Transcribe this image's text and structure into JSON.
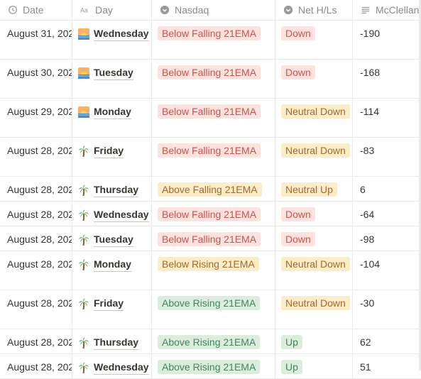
{
  "columns": {
    "date": "Date",
    "day": "Day",
    "nasdaq": "Nasdaq",
    "net": "Net H/Ls",
    "mcclellan": "McClellan"
  },
  "rows": [
    {
      "date": "August 31, 202",
      "emoji": "sunrise-icon",
      "day": "Wednesday",
      "nasdaq": "Below Falling 21EMA",
      "nasdaq_color": "red",
      "net": "Down",
      "net_color": "red",
      "mc": "-190",
      "height": 54
    },
    {
      "date": "August 30, 202",
      "emoji": "sunrise-icon",
      "day": "Tuesday",
      "nasdaq": "Below Falling 21EMA",
      "nasdaq_color": "red",
      "net": "Down",
      "net_color": "red",
      "mc": "-168",
      "height": 54
    },
    {
      "date": "August 29, 202",
      "emoji": "sunrise-icon",
      "day": "Monday",
      "nasdaq": "Below Falling 21EMA",
      "nasdaq_color": "red",
      "net": "Neutral Down",
      "net_color": "yellow",
      "mc": "-114",
      "height": 54
    },
    {
      "date": "August 28, 202",
      "emoji": "palm-tree-icon",
      "day": "Friday",
      "nasdaq": "Below Falling 21EMA",
      "nasdaq_color": "red",
      "net": "Neutral Down",
      "net_color": "yellow",
      "mc": "-83",
      "height": 54
    },
    {
      "date": "August 28, 202",
      "emoji": "palm-tree-icon",
      "day": "Thursday",
      "nasdaq": "Above Falling 21EMA",
      "nasdaq_color": "yellow",
      "net": "Neutral Up",
      "net_color": "yellow",
      "mc": "6",
      "height": 34
    },
    {
      "date": "August 28, 202",
      "emoji": "palm-tree-icon",
      "day": "Wednesday",
      "nasdaq": "Below Falling 21EMA",
      "nasdaq_color": "red",
      "net": "Down",
      "net_color": "red",
      "mc": "-64",
      "height": 34
    },
    {
      "date": "August 28, 202",
      "emoji": "palm-tree-icon",
      "day": "Tuesday",
      "nasdaq": "Below Falling 21EMA",
      "nasdaq_color": "red",
      "net": "Down",
      "net_color": "red",
      "mc": "-98",
      "height": 34
    },
    {
      "date": "August 28, 202",
      "emoji": "palm-tree-icon",
      "day": "Monday",
      "nasdaq": "Below Rising 21EMA",
      "nasdaq_color": "yellow",
      "net": "Neutral Down",
      "net_color": "yellow",
      "mc": "-104",
      "height": 54
    },
    {
      "date": "August 28, 202",
      "emoji": "palm-tree-icon",
      "day": "Friday",
      "nasdaq": "Above Rising 21EMA",
      "nasdaq_color": "green",
      "net": "Neutral Down",
      "net_color": "yellow",
      "mc": "-30",
      "height": 54
    },
    {
      "date": "August 28, 202",
      "emoji": "palm-tree-icon",
      "day": "Thursday",
      "nasdaq": "Above Rising 21EMA",
      "nasdaq_color": "green",
      "net": "Up",
      "net_color": "green",
      "mc": "62",
      "height": 34
    },
    {
      "date": "August 28, 202",
      "emoji": "palm-tree-icon",
      "day": "Wednesday",
      "nasdaq": "Above Rising 21EMA",
      "nasdaq_color": "green",
      "net": "Up",
      "net_color": "green",
      "mc": "51",
      "height": 34
    }
  ]
}
